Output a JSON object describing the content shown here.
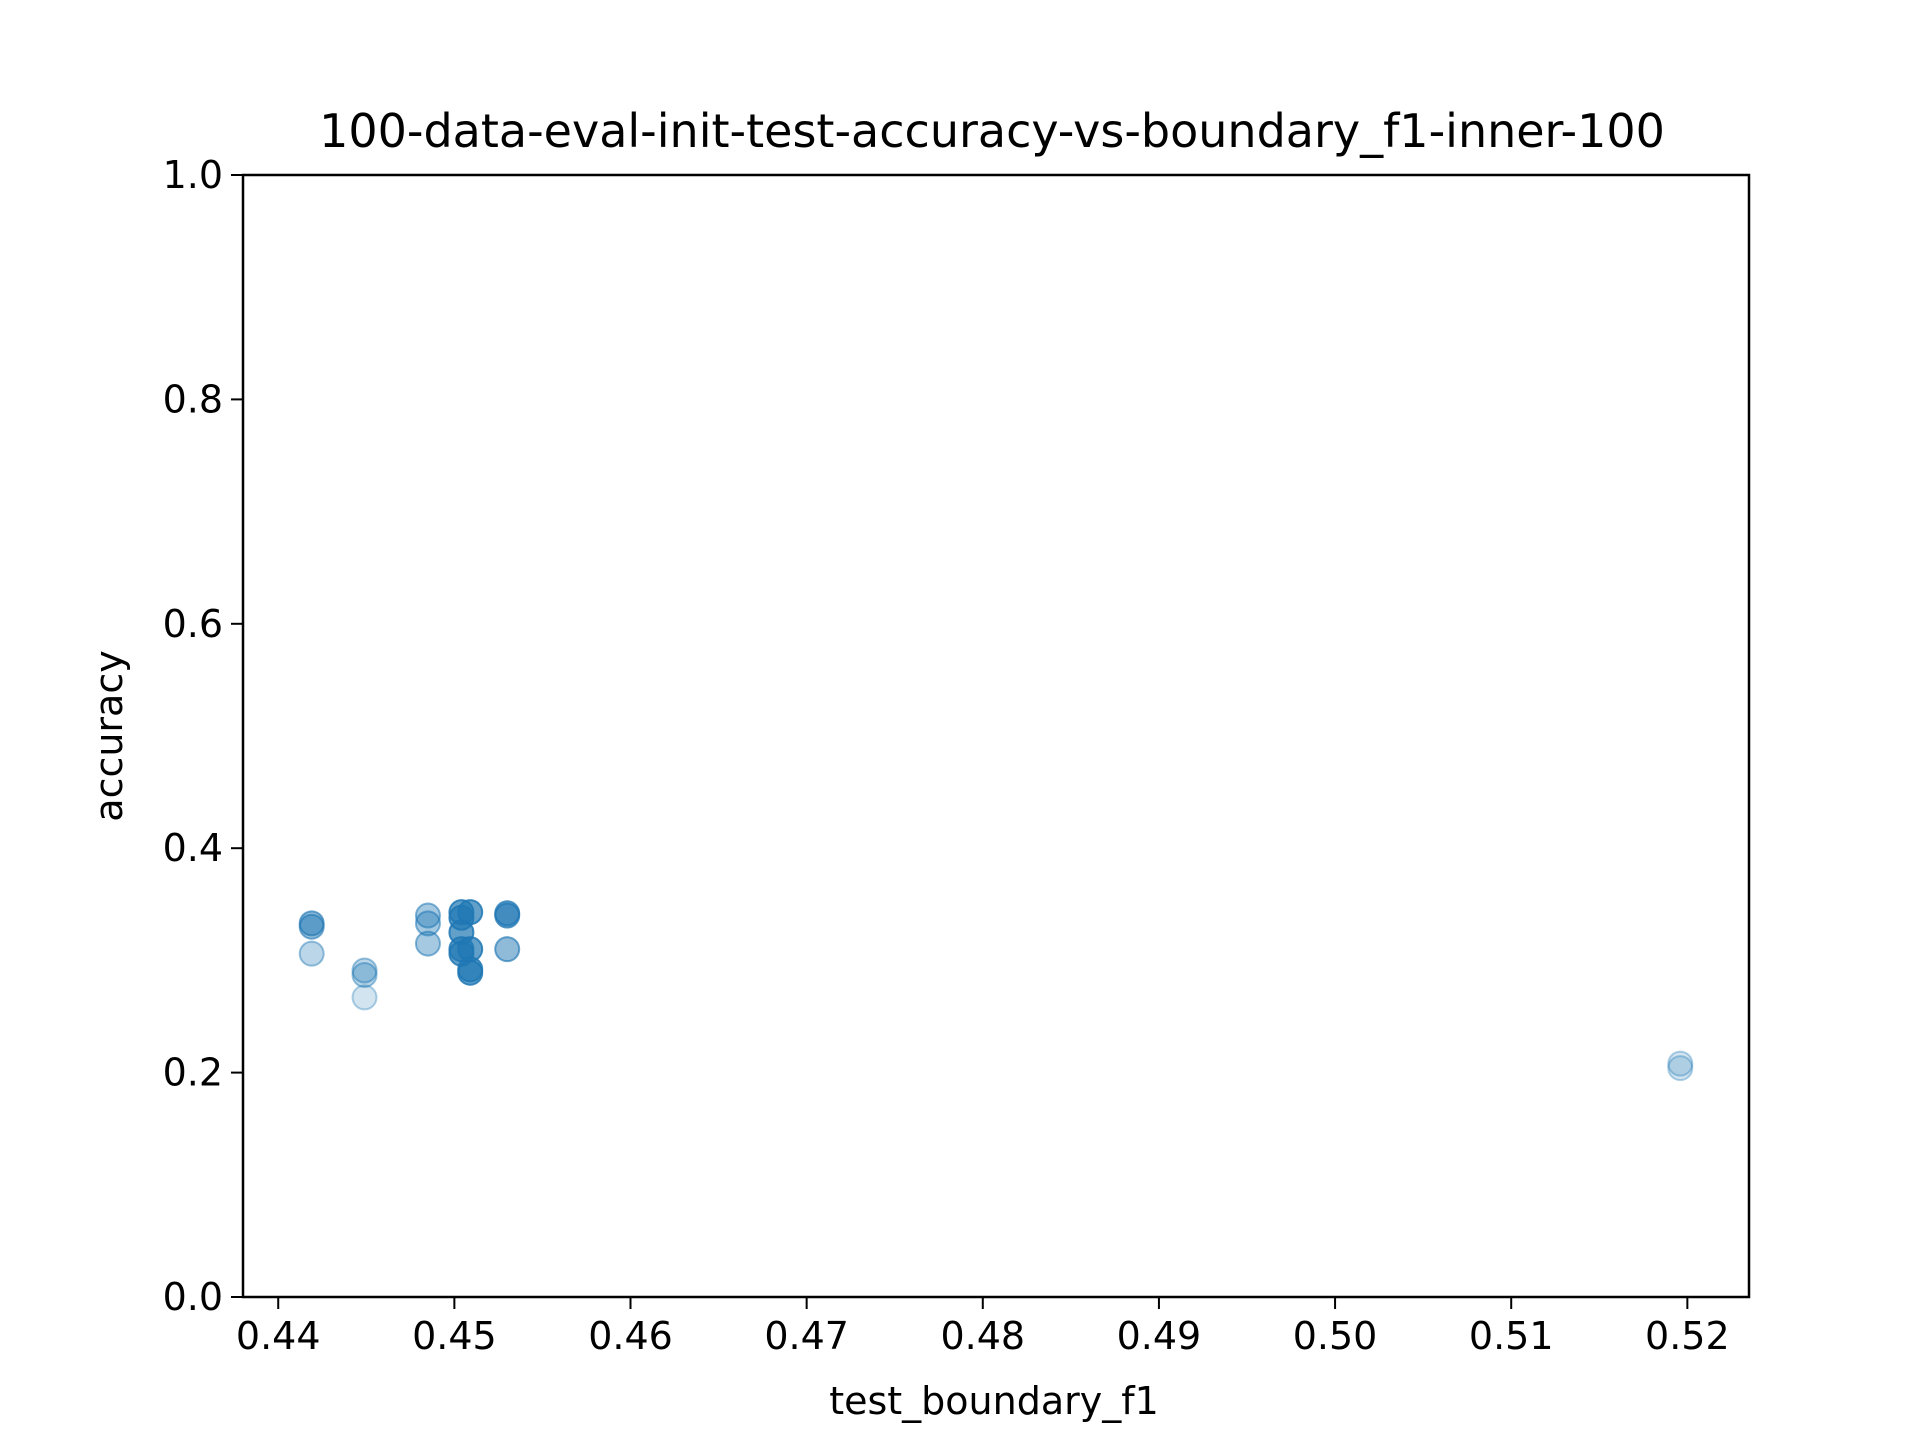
{
  "chart_data": {
    "type": "scatter",
    "title": "100-data-eval-init-test-accuracy-vs-boundary_f1-inner-100",
    "xlabel": "test_boundary_f1",
    "ylabel": "accuracy",
    "xlim": [
      0.438,
      0.5235
    ],
    "ylim": [
      0.0,
      1.0
    ],
    "xticks": [
      "0.44",
      "0.45",
      "0.46",
      "0.47",
      "0.48",
      "0.49",
      "0.50",
      "0.51",
      "0.52"
    ],
    "yticks": [
      "0.0",
      "0.2",
      "0.4",
      "0.6",
      "0.8",
      "1.0"
    ],
    "grid": false,
    "marker_color": "#1f77b4",
    "series": [
      {
        "points": [
          {
            "x": 0.4419,
            "y": 0.333,
            "alpha": 0.5
          },
          {
            "x": 0.4419,
            "y": 0.33,
            "alpha": 0.45
          },
          {
            "x": 0.4419,
            "y": 0.306,
            "alpha": 0.3
          },
          {
            "x": 0.4449,
            "y": 0.291,
            "alpha": 0.3
          },
          {
            "x": 0.4449,
            "y": 0.287,
            "alpha": 0.3
          },
          {
            "x": 0.4449,
            "y": 0.267,
            "alpha": 0.2
          },
          {
            "x": 0.4485,
            "y": 0.34,
            "alpha": 0.4
          },
          {
            "x": 0.4485,
            "y": 0.333,
            "alpha": 0.4
          },
          {
            "x": 0.4485,
            "y": 0.315,
            "alpha": 0.4
          },
          {
            "x": 0.4504,
            "y": 0.343,
            "alpha": 0.7
          },
          {
            "x": 0.4504,
            "y": 0.338,
            "alpha": 0.7
          },
          {
            "x": 0.4504,
            "y": 0.325,
            "alpha": 0.7
          },
          {
            "x": 0.4504,
            "y": 0.31,
            "alpha": 0.7
          },
          {
            "x": 0.4504,
            "y": 0.306,
            "alpha": 0.7
          },
          {
            "x": 0.4509,
            "y": 0.343,
            "alpha": 0.7
          },
          {
            "x": 0.4509,
            "y": 0.31,
            "alpha": 0.7
          },
          {
            "x": 0.4509,
            "y": 0.292,
            "alpha": 0.7
          },
          {
            "x": 0.4509,
            "y": 0.289,
            "alpha": 0.7
          },
          {
            "x": 0.453,
            "y": 0.342,
            "alpha": 0.6
          },
          {
            "x": 0.453,
            "y": 0.34,
            "alpha": 0.6
          },
          {
            "x": 0.453,
            "y": 0.31,
            "alpha": 0.5
          },
          {
            "x": 0.5196,
            "y": 0.208,
            "alpha": 0.2
          },
          {
            "x": 0.5196,
            "y": 0.204,
            "alpha": 0.2
          }
        ]
      }
    ]
  }
}
